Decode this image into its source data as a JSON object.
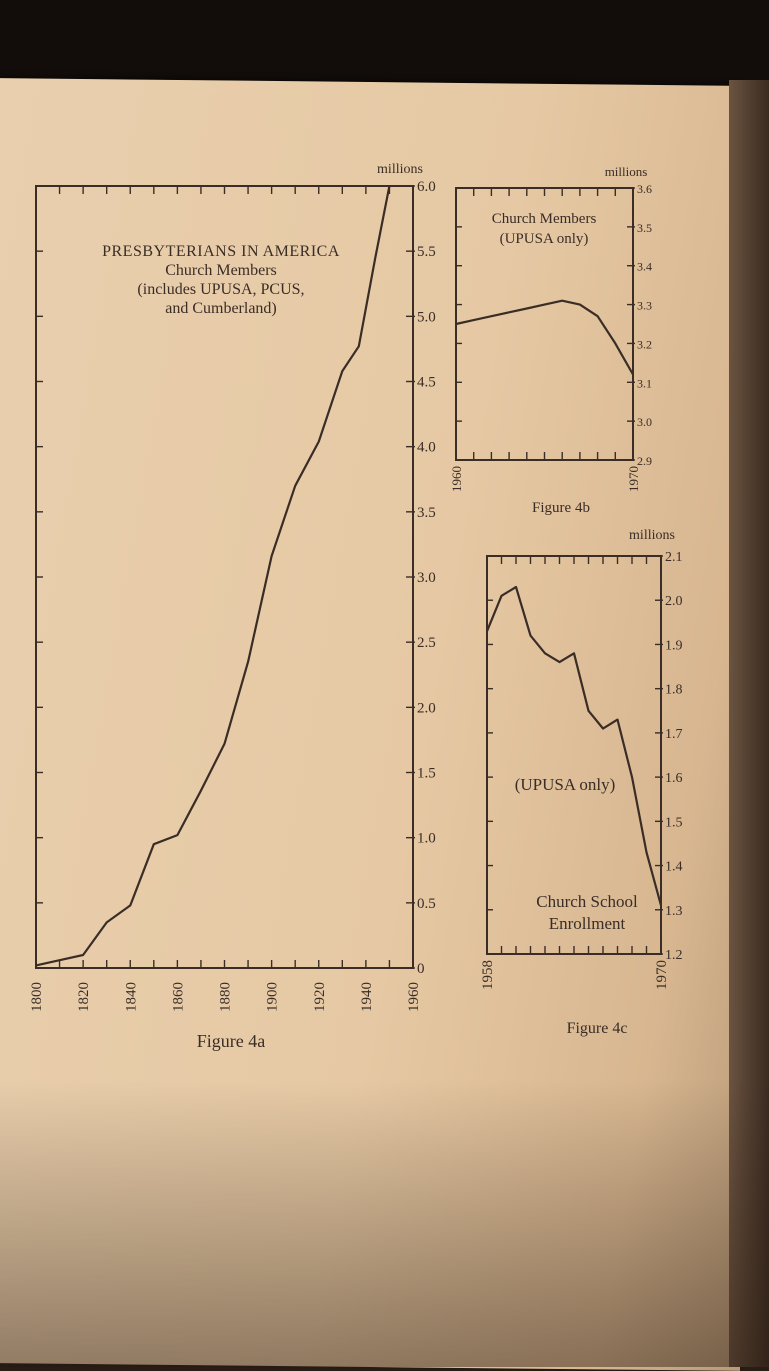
{
  "chart_data": [
    {
      "type": "line",
      "title": "PRESBYTERIANS IN AMERICA",
      "subtitle_lines": [
        "Church Members",
        "(includes UPUSA, PCUS,",
        "and Cumberland)"
      ],
      "caption": "Figure 4a",
      "unit": "millions",
      "xlim": [
        1800,
        1960
      ],
      "ylim": [
        0,
        6.0
      ],
      "x_ticks": [
        "1800",
        "1820",
        "1840",
        "1860",
        "1880",
        "1900",
        "1920",
        "1940",
        "1960"
      ],
      "y_ticks": [
        "0",
        "0.5",
        "1.0",
        "1.5",
        "2.0",
        "2.5",
        "3.0",
        "3.5",
        "4.0",
        "4.5",
        "5.0",
        "5.5",
        "6.0"
      ],
      "x": [
        1800,
        1810,
        1820,
        1830,
        1840,
        1850,
        1860,
        1870,
        1880,
        1890,
        1900,
        1910,
        1920,
        1930,
        1937,
        1944,
        1950
      ],
      "y": [
        0.02,
        0.06,
        0.1,
        0.35,
        0.48,
        0.95,
        1.02,
        1.36,
        1.72,
        2.35,
        3.16,
        3.7,
        4.04,
        4.58,
        4.77,
        5.45,
        6.0
      ]
    },
    {
      "type": "line",
      "title": "Church Members",
      "subtitle_lines": [
        "(UPUSA only)"
      ],
      "caption": "Figure 4b",
      "unit": "millions",
      "xlim": [
        1960,
        1970
      ],
      "ylim": [
        2.9,
        3.6
      ],
      "x_ticks": [
        "1960",
        "1970"
      ],
      "y_ticks": [
        "2.9",
        "3.0",
        "3.1",
        "3.2",
        "3.3",
        "3.4",
        "3.5",
        "3.6"
      ],
      "x": [
        1960,
        1961,
        1962,
        1963,
        1964,
        1965,
        1966,
        1967,
        1968,
        1969,
        1970
      ],
      "y": [
        3.25,
        3.26,
        3.27,
        3.28,
        3.29,
        3.3,
        3.31,
        3.3,
        3.27,
        3.2,
        3.12
      ]
    },
    {
      "type": "line",
      "title": "Church School",
      "subtitle_lines": [
        "Enrollment"
      ],
      "side_note": "(UPUSA only)",
      "caption": "Figure 4c",
      "unit": "millions",
      "xlim": [
        1958,
        1970
      ],
      "ylim": [
        1.2,
        2.1
      ],
      "x_ticks": [
        "1958",
        "1970"
      ],
      "y_ticks": [
        "1.2",
        "1.3",
        "1.4",
        "1.5",
        "1.6",
        "1.7",
        "1.8",
        "1.9",
        "2.0",
        "2.1"
      ],
      "x": [
        1958,
        1959,
        1960,
        1961,
        1962,
        1963,
        1964,
        1965,
        1966,
        1967,
        1968,
        1969,
        1970
      ],
      "y": [
        1.93,
        2.01,
        2.03,
        1.92,
        1.88,
        1.86,
        1.88,
        1.75,
        1.71,
        1.73,
        1.6,
        1.43,
        1.31
      ]
    }
  ]
}
